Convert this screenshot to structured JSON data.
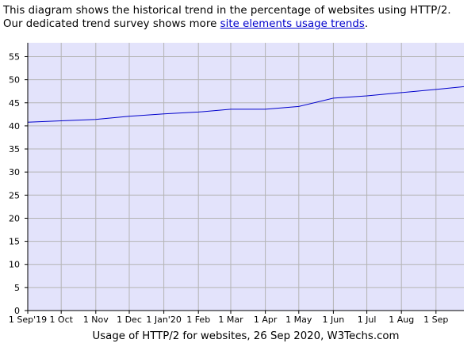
{
  "intro": {
    "line1": "This diagram shows the historical trend in the percentage of websites using HTTP/2.",
    "line2_before": "Our dedicated trend survey shows more ",
    "link_text": "site elements usage trends",
    "line2_after": "."
  },
  "colors": {
    "plot_background": "#e3e3fb",
    "grid": "#b4b4b4",
    "series_line": "#0000cc",
    "axis": "#000000",
    "link": "#0000cc"
  },
  "chart_data": {
    "type": "line",
    "title": "Usage of HTTP/2 for websites, 26 Sep 2020, W3Techs.com",
    "xlabel": "",
    "ylabel": "",
    "ylim": [
      0,
      58
    ],
    "grid": true,
    "y_ticks": [
      "0",
      "5",
      "10",
      "15",
      "20",
      "25",
      "30",
      "35",
      "40",
      "45",
      "50",
      "55"
    ],
    "x_ticks": [
      "1 Sep'19",
      "1 Oct",
      "1 Nov",
      "1 Dec",
      "1 Jan'20",
      "1 Feb",
      "1 Mar",
      "1 Apr",
      "1 May",
      "1 Jun",
      "1 Jul",
      "1 Aug",
      "1 Sep"
    ],
    "x": [
      "1 Sep'19",
      "1 Oct",
      "1 Nov",
      "1 Dec",
      "1 Jan'20",
      "1 Feb",
      "1 Mar",
      "1 Apr",
      "1 May",
      "1 Jun",
      "1 Jul",
      "1 Aug",
      "1 Sep",
      "26 Sep"
    ],
    "series": [
      {
        "values": [
          40.8,
          41.1,
          41.4,
          42.1,
          42.6,
          43.0,
          43.6,
          43.6,
          44.2,
          46.0,
          46.5,
          47.2,
          47.9,
          48.5
        ]
      }
    ]
  }
}
